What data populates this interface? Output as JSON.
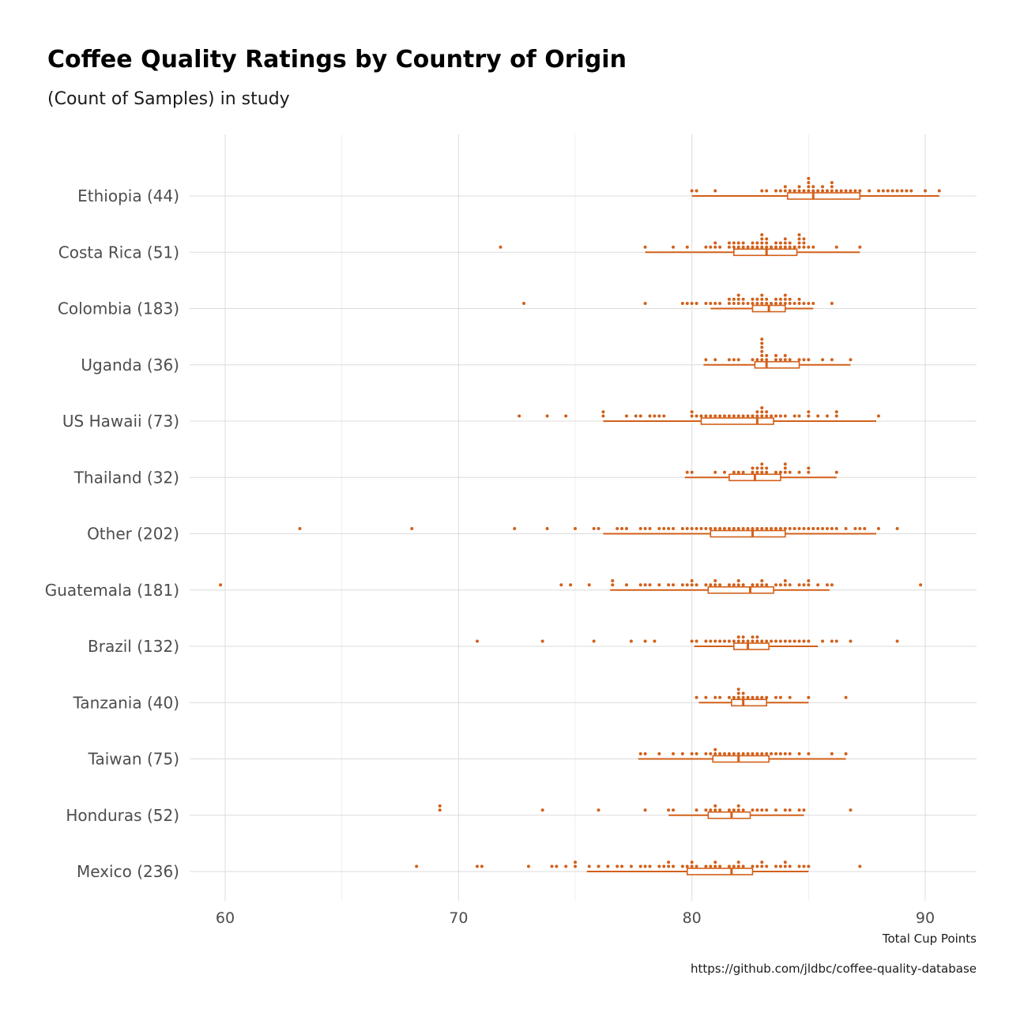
{
  "chart_data": {
    "type": "dotplot-boxplot",
    "title": "Coffee Quality Ratings by Country of Origin",
    "subtitle": "(Count of Samples) in study",
    "xlabel": "Total Cup Points",
    "caption": "https://github.com/jldbc/coffee-quality-database",
    "xlim": [
      58,
      92
    ],
    "xticks": [
      60,
      70,
      80,
      90
    ],
    "grid": true,
    "accent_color": "#d2601a",
    "categories": [
      "Ethiopia (44)",
      "Costa Rica (51)",
      "Colombia (183)",
      "Uganda (36)",
      "US Hawaii (73)",
      "Thailand (32)",
      "Other (202)",
      "Guatemala (181)",
      "Brazil (132)",
      "Tanzania (40)",
      "Taiwan (75)",
      "Honduras (52)",
      "Mexico (236)"
    ],
    "series": [
      {
        "category": "Ethiopia (44)",
        "count": 44,
        "min": 80.0,
        "q1": 84.1,
        "median": 85.2,
        "q3": 87.2,
        "max": 90.6,
        "points": [
          80.0,
          80.3,
          81.1,
          83.0,
          83.3,
          83.6,
          83.8,
          84.0,
          84.1,
          84.2,
          84.4,
          84.5,
          84.6,
          84.8,
          84.9,
          85.0,
          85.0,
          85.1,
          85.2,
          85.3,
          85.4,
          85.5,
          85.6,
          85.8,
          85.9,
          86.0,
          86.1,
          86.3,
          86.4,
          86.6,
          86.8,
          87.0,
          87.2,
          87.5,
          87.9,
          88.2,
          88.4,
          88.6,
          88.8,
          89.0,
          89.2,
          89.4,
          89.9,
          90.6
        ]
      },
      {
        "category": "Costa Rica (51)",
        "count": 51,
        "min": 78.0,
        "q1": 81.8,
        "median": 83.2,
        "q3": 84.5,
        "max": 87.2,
        "points": [
          71.8,
          78.0,
          79.2,
          79.8,
          80.6,
          80.8,
          81.0,
          81.1,
          81.3,
          81.5,
          81.6,
          81.7,
          81.8,
          82.0,
          82.1,
          82.2,
          82.3,
          82.4,
          82.5,
          82.6,
          82.7,
          82.8,
          82.9,
          83.0,
          83.0,
          83.1,
          83.2,
          83.2,
          83.3,
          83.4,
          83.5,
          83.6,
          83.7,
          83.8,
          83.9,
          84.0,
          84.1,
          84.2,
          84.3,
          84.4,
          84.5,
          84.5,
          84.6,
          84.6,
          84.7,
          84.7,
          84.8,
          85.0,
          85.3,
          86.3,
          87.2
        ]
      },
      {
        "category": "Colombia (183)",
        "count": 183,
        "min": 80.8,
        "q1": 82.6,
        "median": 83.3,
        "q3": 84.0,
        "max": 85.2,
        "points": [
          72.8,
          78.0,
          79.5,
          79.7,
          80.0,
          80.3,
          80.6,
          80.8,
          81.0,
          81.3,
          81.5,
          81.6,
          81.7,
          81.8,
          81.9,
          82.0,
          82.1,
          82.2,
          82.3,
          82.4,
          82.5,
          82.6,
          82.7,
          82.8,
          82.9,
          83.0,
          83.1,
          83.2,
          83.3,
          83.4,
          83.5,
          83.6,
          83.7,
          83.8,
          83.9,
          84.0,
          84.1,
          84.2,
          84.3,
          84.4,
          84.5,
          84.6,
          84.8,
          85.0,
          85.2,
          86.0
        ]
      },
      {
        "category": "Uganda (36)",
        "count": 36,
        "min": 80.5,
        "q1": 82.7,
        "median": 83.2,
        "q3": 84.6,
        "max": 86.8,
        "points": [
          80.5,
          80.9,
          81.5,
          81.7,
          82.0,
          82.5,
          82.8,
          83.0,
          83.0,
          83.0,
          83.0,
          83.0,
          83.1,
          83.2,
          83.3,
          83.5,
          83.6,
          83.8,
          84.0,
          84.1,
          84.3,
          84.5,
          84.8,
          85.0,
          85.6,
          85.9,
          86.8
        ]
      },
      {
        "category": "US Hawaii (73)",
        "count": 73,
        "min": 76.2,
        "q1": 80.4,
        "median": 82.8,
        "q3": 83.5,
        "max": 87.9,
        "points": [
          72.6,
          73.7,
          74.5,
          76.2,
          76.2,
          77.2,
          77.5,
          77.8,
          78.2,
          78.4,
          78.5,
          78.8,
          79.9,
          79.9,
          80.2,
          80.4,
          80.6,
          80.8,
          81.0,
          81.2,
          81.4,
          81.6,
          81.8,
          82.0,
          82.2,
          82.4,
          82.6,
          82.7,
          82.8,
          83.0,
          83.0,
          83.1,
          83.2,
          83.3,
          83.4,
          83.6,
          83.8,
          84.0,
          84.4,
          84.6,
          84.9,
          85.0,
          85.4,
          85.8,
          86.2,
          86.3,
          87.9
        ]
      },
      {
        "category": "Thailand (32)",
        "count": 32,
        "min": 79.7,
        "q1": 81.6,
        "median": 82.7,
        "q3": 83.8,
        "max": 86.2,
        "points": [
          79.7,
          79.9,
          81.0,
          81.4,
          81.7,
          82.0,
          82.3,
          82.5,
          82.6,
          82.7,
          82.8,
          82.9,
          83.0,
          83.1,
          83.2,
          83.3,
          83.5,
          83.7,
          83.9,
          84.0,
          84.1,
          84.2,
          84.5,
          84.9,
          85.1,
          86.2
        ]
      },
      {
        "category": "Other (202)",
        "count": 202,
        "min": 76.2,
        "q1": 80.8,
        "median": 82.6,
        "q3": 84.0,
        "max": 87.9,
        "points": [
          63.1,
          67.9,
          72.4,
          73.7,
          75.0,
          75.8,
          76.1,
          76.8,
          77.0,
          77.3,
          77.8,
          78.0,
          78.3,
          78.5,
          78.8,
          79.0,
          79.3,
          79.6,
          79.8,
          80.0,
          80.2,
          80.4,
          80.6,
          80.8,
          81.0,
          81.2,
          81.4,
          81.6,
          81.8,
          82.0,
          82.2,
          82.4,
          82.6,
          82.8,
          83.0,
          83.2,
          83.4,
          83.6,
          83.8,
          84.0,
          84.2,
          84.4,
          84.6,
          84.8,
          85.0,
          85.2,
          85.4,
          85.6,
          85.8,
          86.0,
          86.3,
          86.6,
          87.0,
          87.2,
          87.4,
          87.9,
          88.7
        ]
      },
      {
        "category": "Guatemala (181)",
        "count": 181,
        "min": 76.5,
        "q1": 80.7,
        "median": 82.5,
        "q3": 83.5,
        "max": 85.9,
        "points": [
          59.8,
          74.4,
          74.8,
          75.6,
          76.5,
          76.6,
          77.3,
          77.8,
          78.0,
          78.3,
          78.6,
          78.9,
          79.2,
          79.5,
          79.7,
          79.9,
          80.1,
          80.3,
          80.5,
          80.7,
          80.9,
          81.1,
          81.3,
          81.5,
          81.7,
          81.9,
          82.1,
          82.3,
          82.5,
          82.7,
          82.9,
          83.1,
          83.3,
          83.5,
          83.7,
          83.9,
          84.1,
          84.3,
          84.5,
          84.7,
          84.9,
          85.1,
          85.4,
          85.8,
          85.9,
          89.8
        ]
      },
      {
        "category": "Brazil (132)",
        "count": 132,
        "min": 80.1,
        "q1": 81.8,
        "median": 82.4,
        "q3": 83.3,
        "max": 85.4,
        "points": [
          70.7,
          73.6,
          75.7,
          77.4,
          77.9,
          78.4,
          80.1,
          80.3,
          80.5,
          80.8,
          81.0,
          81.2,
          81.4,
          81.6,
          81.8,
          82.0,
          82.1,
          82.2,
          82.3,
          82.4,
          82.5,
          82.6,
          82.7,
          82.8,
          83.0,
          83.2,
          83.4,
          83.6,
          83.8,
          84.0,
          84.2,
          84.4,
          84.6,
          84.8,
          85.0,
          85.5,
          86.1,
          86.3,
          86.8,
          88.8
        ]
      },
      {
        "category": "Tanzania (40)",
        "count": 40,
        "min": 80.3,
        "q1": 81.7,
        "median": 82.2,
        "q3": 83.2,
        "max": 85.0,
        "points": [
          80.3,
          80.5,
          80.9,
          81.3,
          81.5,
          81.7,
          81.9,
          82.0,
          82.1,
          82.2,
          82.3,
          82.4,
          82.6,
          82.8,
          83.0,
          83.3,
          83.5,
          83.7,
          84.2,
          84.9,
          86.6
        ]
      },
      {
        "category": "Taiwan (75)",
        "count": 75,
        "min": 77.7,
        "q1": 80.9,
        "median": 82.0,
        "q3": 83.3,
        "max": 86.6,
        "points": [
          77.7,
          78.0,
          78.6,
          79.3,
          79.6,
          79.9,
          80.2,
          80.5,
          80.7,
          80.9,
          81.0,
          81.2,
          81.4,
          81.6,
          81.8,
          82.0,
          82.2,
          82.4,
          82.6,
          82.8,
          83.0,
          83.2,
          83.4,
          83.6,
          83.8,
          84.0,
          84.2,
          84.6,
          84.9,
          86.0,
          86.6
        ]
      },
      {
        "category": "Honduras (52)",
        "count": 52,
        "min": 79.0,
        "q1": 80.7,
        "median": 81.7,
        "q3": 82.5,
        "max": 84.8,
        "points": [
          69.2,
          69.3,
          73.5,
          76.0,
          78.1,
          79.0,
          79.2,
          80.2,
          80.5,
          80.7,
          80.9,
          81.1,
          81.3,
          81.5,
          81.7,
          81.9,
          82.1,
          82.3,
          82.5,
          82.7,
          83.0,
          83.3,
          83.6,
          84.0,
          84.3,
          84.6,
          84.8,
          86.7
        ]
      },
      {
        "category": "Mexico (236)",
        "count": 236,
        "min": 75.5,
        "q1": 79.8,
        "median": 81.7,
        "q3": 82.6,
        "max": 85.0,
        "points": [
          68.3,
          70.8,
          71.0,
          72.9,
          73.9,
          74.3,
          74.6,
          74.9,
          75.1,
          75.5,
          76.0,
          76.4,
          76.8,
          77.1,
          77.4,
          77.7,
          78.0,
          78.3,
          78.5,
          78.7,
          78.9,
          79.1,
          79.3,
          79.5,
          79.7,
          79.9,
          80.1,
          80.3,
          80.5,
          80.7,
          80.9,
          81.1,
          81.3,
          81.5,
          81.7,
          81.9,
          82.1,
          82.3,
          82.5,
          82.7,
          82.9,
          83.1,
          83.3,
          83.5,
          83.7,
          83.9,
          84.1,
          84.3,
          84.5,
          84.7,
          85.0,
          87.2
        ]
      }
    ]
  }
}
